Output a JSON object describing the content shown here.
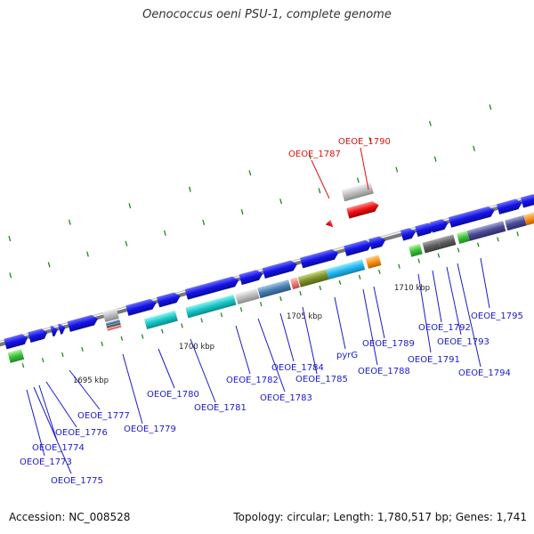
{
  "title": "Oenococcus oeni PSU-1, complete genome",
  "footer": {
    "accession": "Accession: NC_008528",
    "summary": "Topology: circular; Length: 1,780,517 bp; Genes: 1,741"
  },
  "colors": {
    "backbone": "#8a8a8a",
    "forward_gene": "#1414e6",
    "label_blue": "#1a1acc",
    "label_red": "#e01010",
    "tick": "#1e8a1e"
  },
  "scale_labels": [
    "1695 kbp",
    "1700 kbp",
    "1705 kbp",
    "1710 kbp"
  ],
  "gene_labels": [
    "OEOE_1773",
    "OEOE_1774",
    "OEOE_1775",
    "OEOE_1776",
    "OEOE_1777",
    "OEOE_1779",
    "OEOE_1780",
    "OEOE_1781",
    "OEOE_1782",
    "OEOE_1783",
    "OEOE_1784",
    "OEOE_1785",
    "pyrG",
    "OEOE_1787",
    "OEOE_1788",
    "OEOE_1789",
    "OEOE_1790",
    "OEOE_1791",
    "OEOE_1792",
    "OEOE_1793",
    "OEOE_1794",
    "OEOE_1795"
  ]
}
